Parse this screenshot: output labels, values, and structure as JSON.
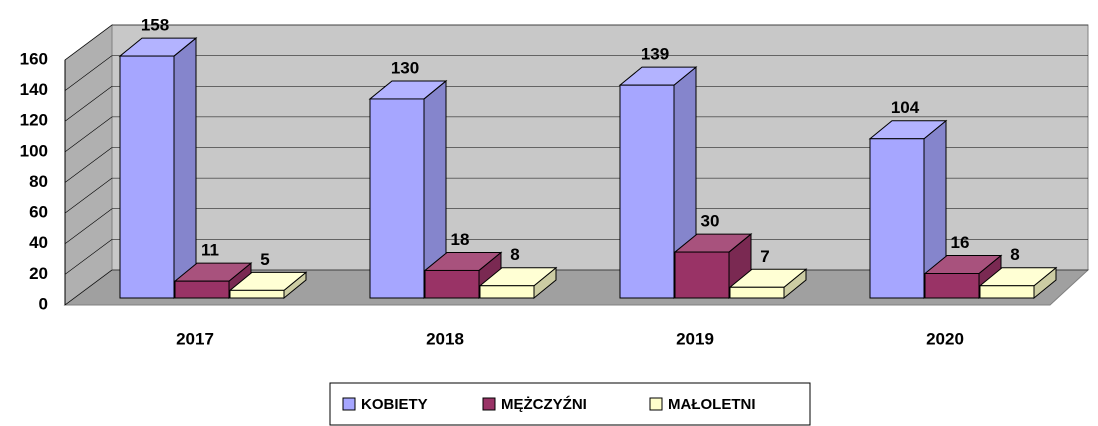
{
  "chart_data": {
    "type": "bar3d",
    "categories": [
      "2017",
      "2018",
      "2019",
      "2020"
    ],
    "series": [
      {
        "name": "KOBIETY",
        "color": "#a6a6ff",
        "values": [
          158,
          130,
          139,
          104
        ]
      },
      {
        "name": "MĘŻCZYŹNI",
        "color": "#993366",
        "values": [
          11,
          18,
          30,
          16
        ]
      },
      {
        "name": "MAŁOLETNI",
        "color": "#ffffcc",
        "values": [
          5,
          8,
          7,
          8
        ]
      }
    ],
    "ylim": [
      0,
      160
    ],
    "yticks": [
      0,
      20,
      40,
      60,
      80,
      100,
      120,
      140,
      160
    ],
    "grid": true,
    "legend": "bottom"
  }
}
